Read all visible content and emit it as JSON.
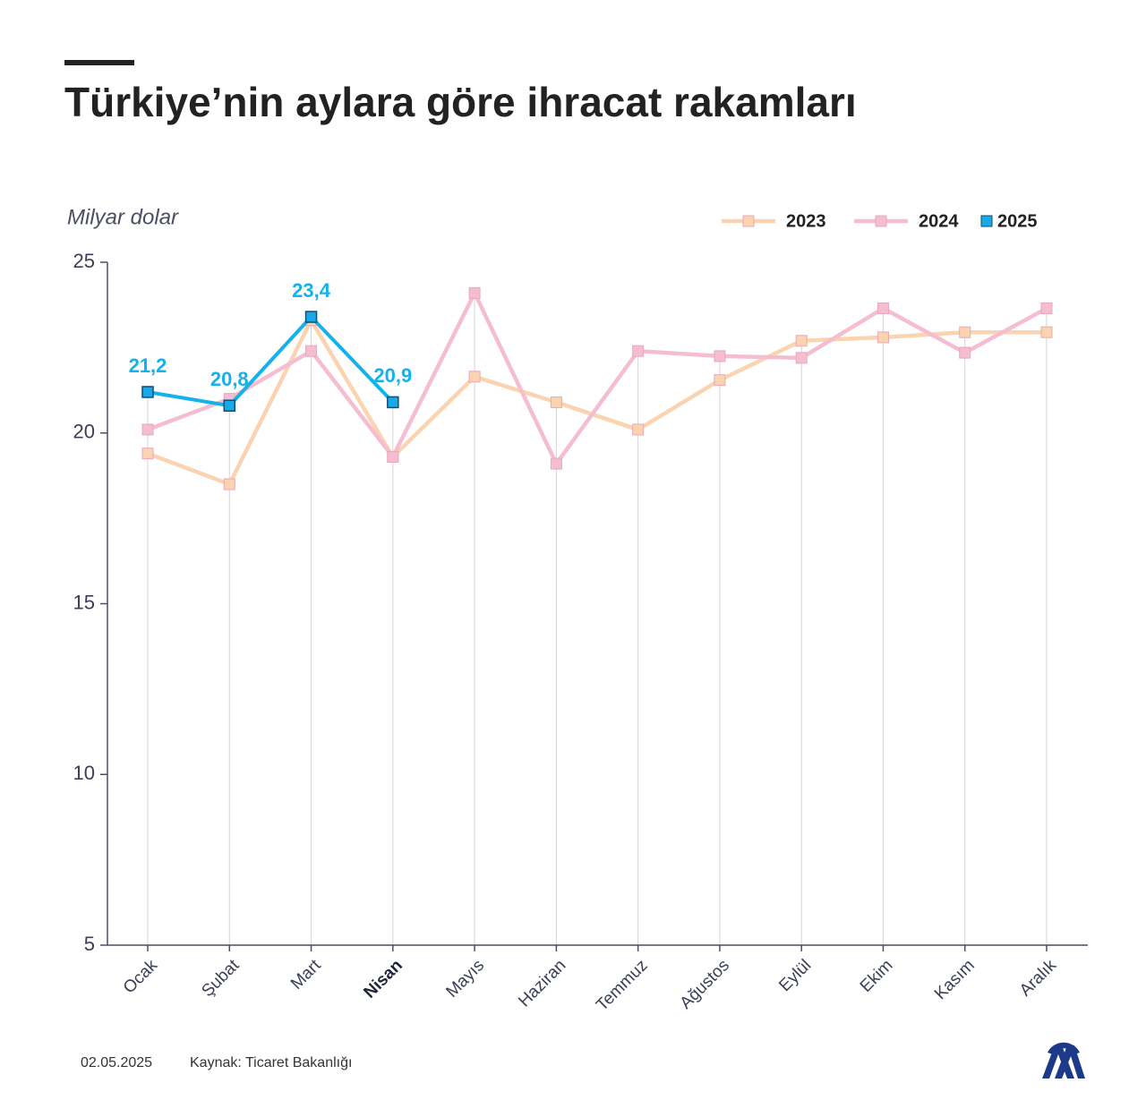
{
  "chart_data": {
    "type": "line",
    "title": "Türkiye’nin aylara göre ihracat rakamları",
    "y_label": "Milyar dolar",
    "categories": [
      "Ocak",
      "Şubat",
      "Mart",
      "Nisan",
      "Mayıs",
      "Haziran",
      "Temmuz",
      "Ağustos",
      "Eylül",
      "Ekim",
      "Kasım",
      "Aralık"
    ],
    "bold_category": "Nisan",
    "series": [
      {
        "name": "2023",
        "color": "#fbd3b0",
        "values": [
          19.4,
          18.5,
          23.3,
          19.3,
          21.65,
          20.9,
          20.1,
          21.55,
          22.7,
          22.8,
          22.95,
          22.95
        ]
      },
      {
        "name": "2024",
        "color": "#f5bdd1",
        "values": [
          20.1,
          21.0,
          22.4,
          19.3,
          24.1,
          19.1,
          22.4,
          22.25,
          22.2,
          23.65,
          22.35,
          23.65
        ]
      },
      {
        "name": "2025",
        "color": "#14b2ea",
        "values": [
          21.2,
          20.8,
          23.4,
          20.9,
          null,
          null,
          null,
          null,
          null,
          null,
          null,
          null
        ],
        "value_labels": [
          "21,2",
          "20,8",
          "23,4",
          "20,9",
          null,
          null,
          null,
          null,
          null,
          null,
          null,
          null
        ]
      }
    ],
    "ylim": [
      5,
      25
    ],
    "yticks": [
      5,
      10,
      15,
      20,
      25
    ],
    "legend": "top-right",
    "footer": {
      "date": "02.05.2025",
      "source": "Kaynak: Ticaret Bakanlığı"
    }
  }
}
